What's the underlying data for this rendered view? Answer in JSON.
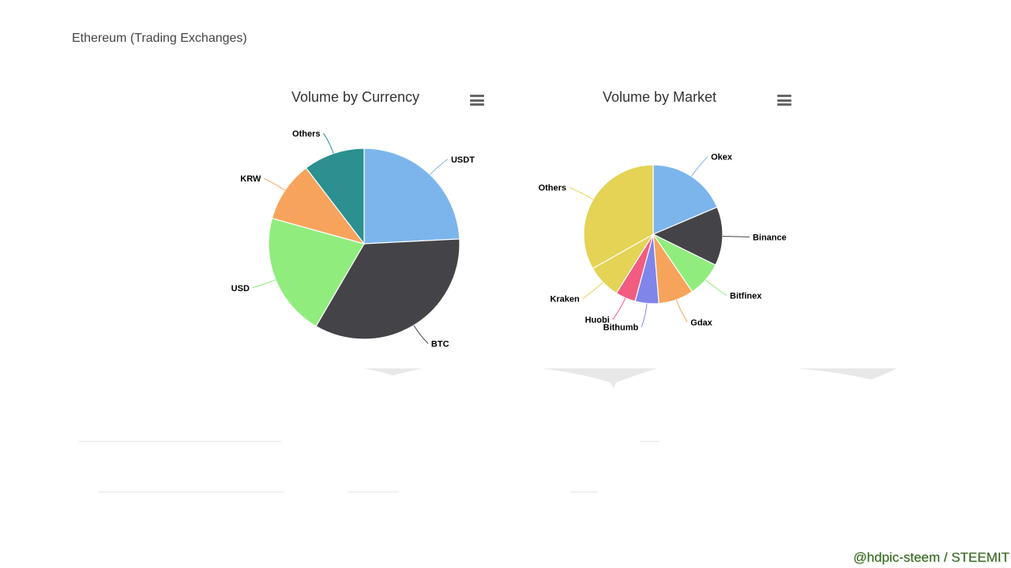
{
  "page": {
    "title": "Ethereum (Trading Exchanges)",
    "watermark": "@hdpic-steem / STEEMIT"
  },
  "chart_data": [
    {
      "type": "pie",
      "title": "Volume by Currency",
      "menu_icon": "hamburger-menu-icon",
      "slices": [
        {
          "label": "USDT",
          "value": 24.2,
          "color": "#7cb5ec"
        },
        {
          "label": "BTC",
          "value": 34.2,
          "color": "#434348"
        },
        {
          "label": "USD",
          "value": 20.9,
          "color": "#90ed7d"
        },
        {
          "label": "KRW",
          "value": 10.3,
          "color": "#f7a35c"
        },
        {
          "label": "Others",
          "value": 10.4,
          "color": "#2b908f"
        }
      ]
    },
    {
      "type": "pie",
      "title": "Volume by Market",
      "menu_icon": "hamburger-menu-icon",
      "slices": [
        {
          "label": "Okex",
          "value": 18.6,
          "color": "#7cb5ec"
        },
        {
          "label": "Binance",
          "value": 13.7,
          "color": "#434348"
        },
        {
          "label": "Bitfinex",
          "value": 8.2,
          "color": "#90ed7d"
        },
        {
          "label": "Gdax",
          "value": 8.2,
          "color": "#f7a35c"
        },
        {
          "label": "Bithumb",
          "value": 5.5,
          "color": "#8085e9"
        },
        {
          "label": "Huobi",
          "value": 4.7,
          "color": "#f15c80"
        },
        {
          "label": "Kraken",
          "value": 7.9,
          "color": "#e4d354"
        },
        {
          "label": "Others",
          "value": 33.2,
          "color": "#e4d354"
        }
      ]
    }
  ]
}
